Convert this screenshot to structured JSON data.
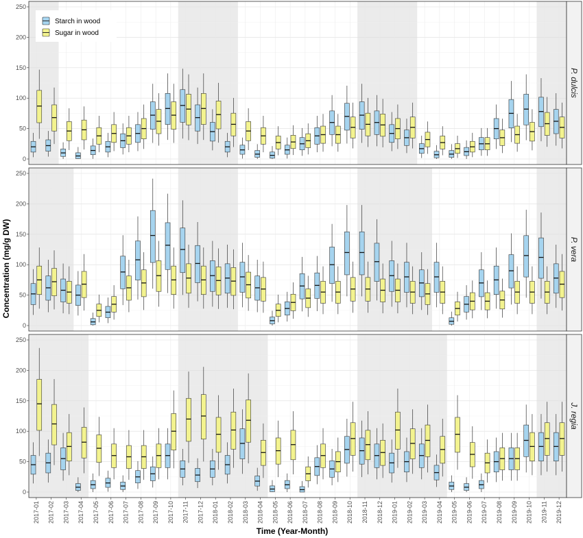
{
  "chart_data": {
    "type": "boxplot",
    "xlabel": "Time (Year-Month)",
    "ylabel": "Concentration (mg/g DW)",
    "ylim": [
      0,
      250
    ],
    "yticks": [
      0,
      50,
      100,
      150,
      200,
      250
    ],
    "grid": true,
    "legend_position": "top-left",
    "legend": [
      {
        "name": "Starch in wood",
        "color": "#a6d4ef"
      },
      {
        "name": "Sugar in wood",
        "color": "#f3f38f"
      }
    ],
    "categories": [
      "2017-01",
      "2017-02",
      "2017-03",
      "2017-04",
      "2017-05",
      "2017-06",
      "2017-07",
      "2017-08",
      "2017-09",
      "2017-10",
      "2017-11",
      "2017-12",
      "2018-01",
      "2018-02",
      "2018-03",
      "2018-04",
      "2018-05",
      "2018-06",
      "2018-07",
      "2018-08",
      "2018-09",
      "2018-10",
      "2018-11",
      "2018-12",
      "2019-01",
      "2019-02",
      "2019-03",
      "2019-04",
      "2019-05",
      "2019-06",
      "2019-07",
      "2019-08",
      "2019-09",
      "2019-10",
      "2019-11",
      "2019-12"
    ],
    "panels": [
      {
        "name": "P. dulcis",
        "shaded_ranges": [
          [
            1,
            2
          ],
          [
            11,
            14
          ],
          [
            23,
            26
          ],
          [
            35,
            36
          ]
        ],
        "series": [
          {
            "name": "Starch in wood",
            "medians": [
              20,
              22,
              10,
              5,
              14,
              20,
              30,
              42,
              72,
              83,
              88,
              68,
              45,
              20,
              15,
              8,
              6,
              15,
              25,
              38,
              60,
              70,
              72,
              60,
              42,
              35,
              17,
              7,
              8,
              12,
              25,
              50,
              75,
              82,
              78,
              62
            ]
          },
          {
            "name": "Sugar in wood",
            "medians": [
              87,
              68,
              46,
              48,
              38,
              42,
              38,
              50,
              62,
              72,
              82,
              83,
              73,
              57,
              46,
              38,
              27,
              28,
              30,
              40,
              40,
              52,
              57,
              56,
              50,
              52,
              32,
              27,
              17,
              20,
              25,
              35,
              40,
              45,
              58,
              52
            ]
          }
        ]
      },
      {
        "name": "P. vera",
        "shaded_ranges": [
          [
            1,
            3
          ],
          [
            11,
            14
          ],
          [
            23,
            27
          ],
          [
            35,
            36
          ]
        ],
        "series": [
          {
            "name": "Starch in wood",
            "medians": [
              52,
              62,
              58,
              50,
              6,
              22,
              88,
              108,
              148,
              132,
              125,
              102,
              82,
              78,
              80,
              62,
              8,
              28,
              65,
              66,
              100,
              120,
              120,
              105,
              82,
              80,
              70,
              80,
              7,
              35,
              70,
              75,
              90,
              115,
              112,
              78
            ]
          },
          {
            "name": "Sugar in wood",
            "medians": [
              75,
              72,
              55,
              68,
              25,
              35,
              62,
              70,
              82,
              75,
              78,
              75,
              74,
              73,
              67,
              60,
              25,
              38,
              45,
              55,
              55,
              60,
              60,
              58,
              58,
              55,
              52,
              55,
              28,
              40,
              40,
              42,
              55,
              55,
              55,
              68
            ]
          }
        ]
      },
      {
        "name": "J. regia",
        "shaded_ranges": [
          [
            1,
            4
          ],
          [
            11,
            16
          ],
          [
            23,
            28
          ],
          [
            35,
            36
          ]
        ],
        "series": [
          {
            "name": "Starch in wood",
            "medians": [
              45,
              48,
              55,
              8,
              12,
              15,
              10,
              25,
              30,
              60,
              38,
              28,
              38,
              45,
              80,
              18,
              5,
              12,
              4,
              42,
              38,
              70,
              68,
              60,
              48,
              50,
              60,
              32,
              10,
              8,
              12,
              50,
              55,
              85,
              75,
              75
            ]
          },
          {
            "name": "Sugar in wood",
            "medians": [
              145,
              112,
              75,
              82,
              72,
              60,
              58,
              58,
              60,
              100,
              120,
              125,
              95,
              102,
              118,
              65,
              68,
              78,
              30,
              60,
              50,
              88,
              78,
              65,
              102,
              80,
              85,
              70,
              95,
              62,
              48,
              55,
              55,
              75,
              88,
              88
            ]
          }
        ]
      }
    ]
  }
}
